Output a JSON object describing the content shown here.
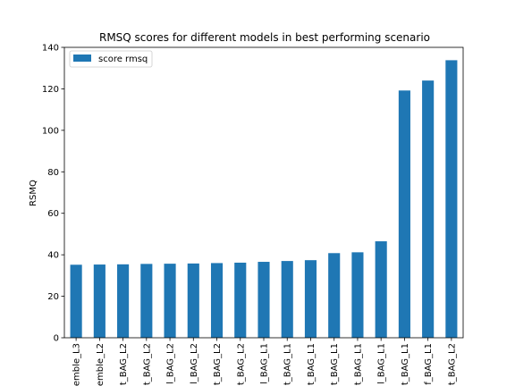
{
  "chart_data": {
    "type": "bar",
    "title": "RMSQ scores for different models in best performing scenario",
    "xlabel": "",
    "ylabel": "RSMQ",
    "ylim": [
      0,
      140
    ],
    "yticks": [
      0,
      20,
      40,
      60,
      80,
      100,
      120,
      140
    ],
    "categories": [
      "emble_L3",
      "emble_L2",
      "t_BAG_L2",
      "t_BAG_L2",
      "l_BAG_L2",
      "l_BAG_L2",
      "t_BAG_L2",
      "t_BAG_L2",
      "l_BAG_L1",
      "t_BAG_L1",
      "t_BAG_L1",
      "t_BAG_L1",
      "t_BAG_L1",
      "l_BAG_L1",
      "t_BAG_L1",
      "f_BAG_L1",
      "t_BAG_L2"
    ],
    "series": [
      {
        "name": "score rmsq",
        "color": "#1f77b4",
        "values": [
          35.2,
          35.3,
          35.4,
          35.6,
          35.7,
          35.8,
          36.0,
          36.2,
          36.6,
          37.0,
          37.4,
          40.8,
          41.2,
          46.5,
          119.2,
          124.0,
          133.8
        ]
      }
    ],
    "grid": false,
    "legend": "top-left"
  }
}
